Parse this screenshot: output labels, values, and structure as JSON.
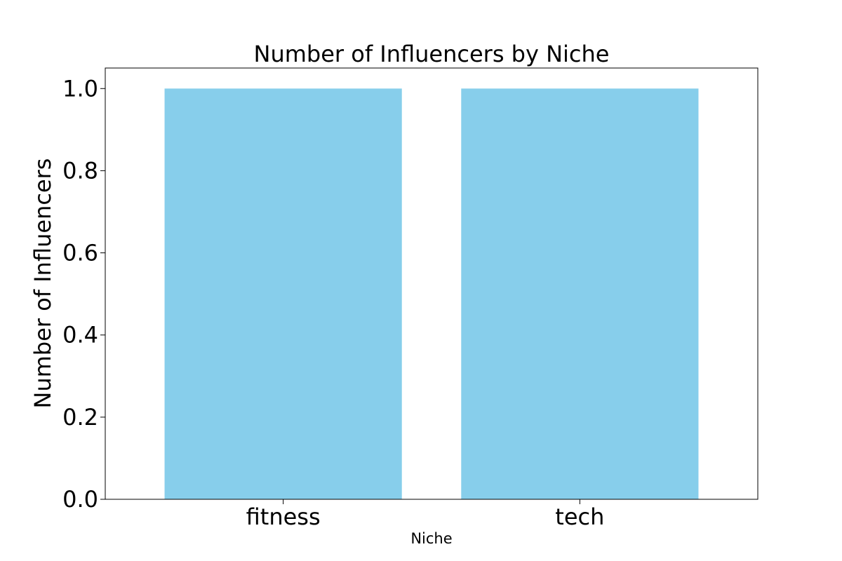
{
  "chart_data": {
    "type": "bar",
    "title": "Number of Influencers by Niche",
    "xlabel": "Niche",
    "ylabel": "Number of Influencers",
    "categories": [
      "fitness",
      "tech"
    ],
    "values": [
      1,
      1
    ],
    "ylim": [
      0,
      1.05
    ],
    "yticks": [
      "0.0",
      "0.2",
      "0.4",
      "0.6",
      "0.8",
      "1.0"
    ],
    "bar_color": "#87CEEB",
    "grid": false,
    "legend": "none"
  }
}
